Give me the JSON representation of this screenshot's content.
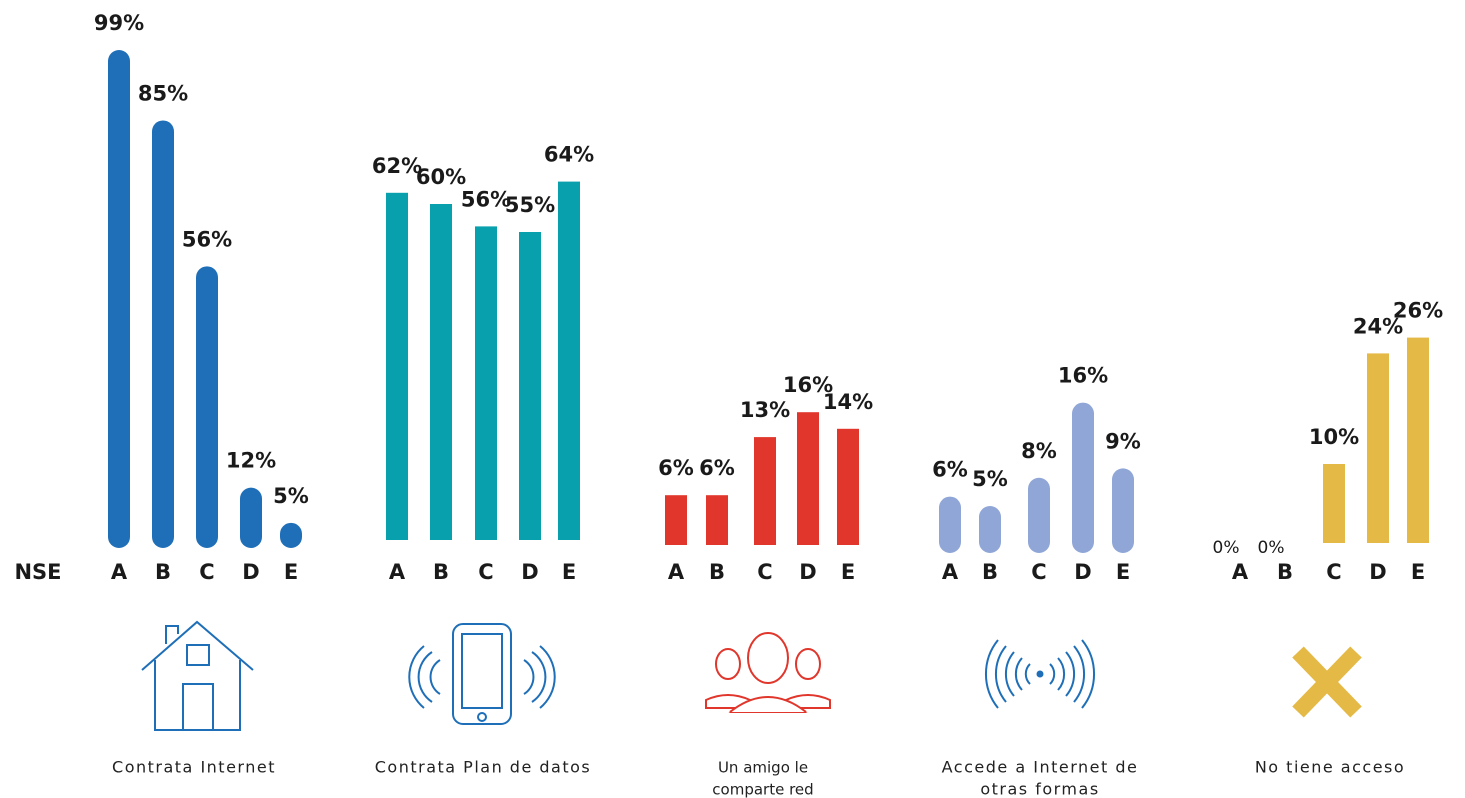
{
  "nse_label": "NSE",
  "chart_data": [
    {
      "type": "bar",
      "title_lines": [
        "Contrata Internet"
      ],
      "color": "#1f6fb8",
      "categories": [
        "A",
        "B",
        "C",
        "D",
        "E"
      ],
      "values": [
        99,
        85,
        56,
        12,
        5
      ],
      "value_labels": [
        "99%",
        "85%",
        "56%",
        "12%",
        "5%"
      ]
    },
    {
      "type": "bar",
      "title_lines": [
        "Contrata Plan de datos"
      ],
      "color": "#07a0ac",
      "categories": [
        "A",
        "B",
        "C",
        "D",
        "E"
      ],
      "values": [
        62,
        60,
        56,
        55,
        64
      ],
      "value_labels": [
        "62%",
        "60%",
        "56%",
        "55%",
        "64%"
      ]
    },
    {
      "type": "bar",
      "title_lines": [
        "Un amigo le",
        "comparte red"
      ],
      "color": "#e0362b",
      "categories": [
        "A",
        "B",
        "C",
        "D",
        "E"
      ],
      "values": [
        6,
        6,
        13,
        16,
        14
      ],
      "value_labels": [
        "6%",
        "6%",
        "13%",
        "16%",
        "14%"
      ]
    },
    {
      "type": "bar",
      "title_lines": [
        "Accede  a Internet de",
        "otras formas"
      ],
      "color": "#8fa6d6",
      "categories": [
        "A",
        "B",
        "C",
        "D",
        "E"
      ],
      "values": [
        6,
        5,
        8,
        16,
        9
      ],
      "value_labels": [
        "6%",
        "5%",
        "8%",
        "16%",
        "9%"
      ]
    },
    {
      "type": "bar",
      "title_lines": [
        "No tiene acceso"
      ],
      "color": "#e5b945",
      "categories": [
        "A",
        "B",
        "C",
        "D",
        "E"
      ],
      "values": [
        0,
        0,
        10,
        24,
        26
      ],
      "value_labels": [
        "0%",
        "0%",
        "10%",
        "24%",
        "26%"
      ]
    }
  ]
}
